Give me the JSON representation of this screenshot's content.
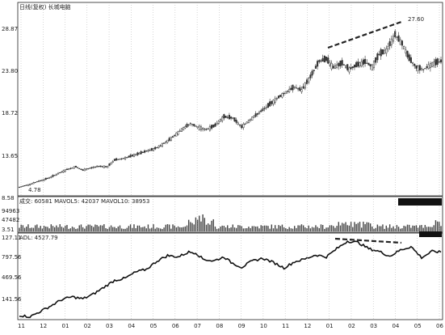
{
  "chart_data": [
    {
      "type": "candlestick",
      "title": "日线(复权)  长城电脑",
      "ylim": [
        3.51,
        28.87
      ],
      "y_ticks": [
        "28.87",
        "23.80",
        "18.72",
        "13.65",
        "8.58",
        "3.51"
      ],
      "annotations": {
        "low": "4.78",
        "high": "27.60"
      },
      "x_ticks": [
        "11",
        "12",
        "01",
        "02",
        "03",
        "04",
        "05",
        "06",
        "07",
        "08",
        "09",
        "10",
        "11",
        "12",
        "01",
        "02",
        "03",
        "04",
        "05",
        "06"
      ],
      "price_path": [
        [
          0,
          4.8
        ],
        [
          6,
          5.2
        ],
        [
          10,
          5.6
        ],
        [
          14,
          5.9
        ],
        [
          18,
          6.3
        ],
        [
          22,
          6.8
        ],
        [
          27,
          7.4
        ],
        [
          32,
          7.8
        ],
        [
          36,
          7.3
        ],
        [
          40,
          7.6
        ],
        [
          45,
          7.9
        ],
        [
          50,
          7.8
        ],
        [
          54,
          8.8
        ],
        [
          60,
          9.1
        ],
        [
          66,
          9.6
        ],
        [
          72,
          10.1
        ],
        [
          76,
          10.4
        ],
        [
          80,
          10.9
        ],
        [
          86,
          12.0
        ],
        [
          92,
          13.3
        ],
        [
          97,
          14.2
        ],
        [
          101,
          13.7
        ],
        [
          106,
          13.3
        ],
        [
          111,
          13.9
        ],
        [
          116,
          15.2
        ],
        [
          121,
          15.0
        ],
        [
          126,
          13.7
        ],
        [
          131,
          14.8
        ],
        [
          136,
          15.8
        ],
        [
          141,
          16.8
        ],
        [
          146,
          17.9
        ],
        [
          151,
          18.8
        ],
        [
          156,
          19.6
        ],
        [
          160,
          19.1
        ],
        [
          165,
          21.1
        ],
        [
          170,
          23.4
        ],
        [
          174,
          23.7
        ],
        [
          178,
          22.5
        ],
        [
          183,
          23.1
        ],
        [
          187,
          22.2
        ],
        [
          191,
          22.8
        ],
        [
          196,
          23.3
        ],
        [
          200,
          22.6
        ],
        [
          204,
          24.4
        ],
        [
          208,
          25.0
        ],
        [
          213,
          27.3
        ],
        [
          217,
          26.0
        ],
        [
          221,
          23.8
        ],
        [
          225,
          22.5
        ],
        [
          229,
          22.2
        ],
        [
          234,
          23.0
        ],
        [
          239,
          23.4
        ]
      ],
      "trendline_label": "27.60"
    },
    {
      "type": "bar",
      "title": "成交: 60581  MAVOL5: 42037  MAVOL10: 38953",
      "y_ticks": [
        "94963",
        "47482"
      ],
      "series": [
        {
          "name": "成交",
          "values": []
        },
        {
          "name": "MAVOL5",
          "values": []
        },
        {
          "name": "MAVOL10",
          "values": []
        }
      ]
    },
    {
      "type": "line",
      "title": "ADL: 4527.79",
      "y_ticks": [
        "127.11",
        "797.56",
        "469.56",
        "141.56"
      ],
      "ylim": [
        0,
        12
      ],
      "values": [
        [
          0,
          0.5
        ],
        [
          6,
          0.3
        ],
        [
          12,
          1.1
        ],
        [
          18,
          1.9
        ],
        [
          24,
          2.8
        ],
        [
          30,
          3.2
        ],
        [
          36,
          2.9
        ],
        [
          42,
          3.6
        ],
        [
          48,
          4.6
        ],
        [
          54,
          5.6
        ],
        [
          60,
          5.9
        ],
        [
          66,
          6.8
        ],
        [
          72,
          7.2
        ],
        [
          78,
          8.4
        ],
        [
          84,
          9.2
        ],
        [
          90,
          9.0
        ],
        [
          96,
          9.7
        ],
        [
          100,
          9.6
        ],
        [
          104,
          8.7
        ],
        [
          110,
          8.4
        ],
        [
          116,
          9.0
        ],
        [
          120,
          8.2
        ],
        [
          126,
          7.5
        ],
        [
          132,
          8.4
        ],
        [
          138,
          8.8
        ],
        [
          144,
          8.2
        ],
        [
          150,
          7.4
        ],
        [
          156,
          8.3
        ],
        [
          162,
          8.7
        ],
        [
          168,
          9.3
        ],
        [
          174,
          9.0
        ],
        [
          180,
          10.2
        ],
        [
          186,
          11.3
        ],
        [
          192,
          11.1
        ],
        [
          198,
          10.2
        ],
        [
          204,
          9.8
        ],
        [
          210,
          9.1
        ],
        [
          216,
          10.0
        ],
        [
          222,
          10.5
        ],
        [
          228,
          8.9
        ],
        [
          234,
          9.8
        ],
        [
          239,
          9.7
        ]
      ]
    }
  ]
}
